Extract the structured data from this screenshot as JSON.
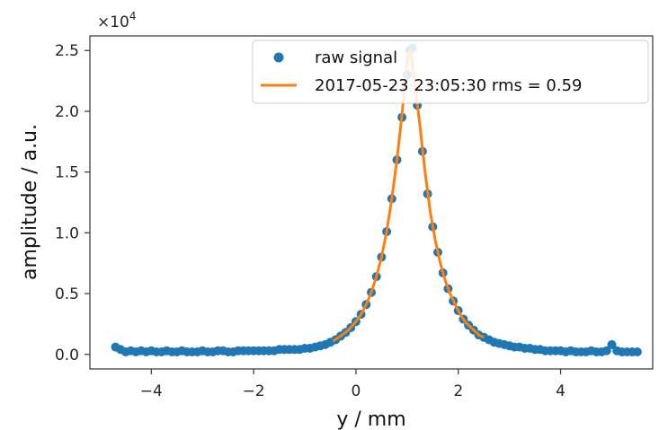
{
  "chart_data": {
    "type": "scatter",
    "xlabel": "y / mm",
    "ylabel": "amplitude / a.u.",
    "y_multiplier_label": "×10",
    "y_multiplier_exp": "4",
    "xlim": [
      -5.2,
      5.8
    ],
    "ylim": [
      -0.12,
      2.62
    ],
    "x_ticks": [
      -4,
      -2,
      0,
      2,
      4
    ],
    "x_tick_labels": [
      "−4",
      "−2",
      "0",
      "2",
      "4"
    ],
    "y_ticks": [
      0.0,
      0.5,
      1.0,
      1.5,
      2.0,
      2.5
    ],
    "y_tick_labels": [
      "0.0",
      "0.5",
      "1.0",
      "1.5",
      "2.0",
      "2.5"
    ],
    "grid": false,
    "legend_position": "top-right",
    "series": [
      {
        "name": "raw signal",
        "kind": "scatter",
        "color": "#1f77b4",
        "points": [
          [
            -4.7,
            0.06
          ],
          [
            -4.6,
            0.04
          ],
          [
            -4.5,
            0.02
          ],
          [
            -4.4,
            0.03
          ],
          [
            -4.3,
            0.02
          ],
          [
            -4.2,
            0.03
          ],
          [
            -4.1,
            0.02
          ],
          [
            -4.0,
            0.03
          ],
          [
            -3.9,
            0.02
          ],
          [
            -3.8,
            0.02
          ],
          [
            -3.7,
            0.03
          ],
          [
            -3.6,
            0.02
          ],
          [
            -3.5,
            0.02
          ],
          [
            -3.4,
            0.03
          ],
          [
            -3.3,
            0.02
          ],
          [
            -3.2,
            0.02
          ],
          [
            -3.1,
            0.02
          ],
          [
            -3.0,
            0.03
          ],
          [
            -2.9,
            0.02
          ],
          [
            -2.8,
            0.02
          ],
          [
            -2.7,
            0.03
          ],
          [
            -2.6,
            0.03
          ],
          [
            -2.5,
            0.02
          ],
          [
            -2.4,
            0.02
          ],
          [
            -2.3,
            0.03
          ],
          [
            -2.2,
            0.03
          ],
          [
            -2.1,
            0.03
          ],
          [
            -2.0,
            0.03
          ],
          [
            -1.9,
            0.03
          ],
          [
            -1.8,
            0.03
          ],
          [
            -1.7,
            0.03
          ],
          [
            -1.6,
            0.03
          ],
          [
            -1.5,
            0.04
          ],
          [
            -1.4,
            0.04
          ],
          [
            -1.3,
            0.04
          ],
          [
            -1.2,
            0.04
          ],
          [
            -1.1,
            0.04
          ],
          [
            -1.0,
            0.05
          ],
          [
            -0.9,
            0.05
          ],
          [
            -0.8,
            0.06
          ],
          [
            -0.7,
            0.07
          ],
          [
            -0.6,
            0.08
          ],
          [
            -0.5,
            0.1
          ],
          [
            -0.4,
            0.12
          ],
          [
            -0.3,
            0.15
          ],
          [
            -0.2,
            0.18
          ],
          [
            -0.1,
            0.22
          ],
          [
            0.0,
            0.27
          ],
          [
            0.1,
            0.33
          ],
          [
            0.2,
            0.41
          ],
          [
            0.3,
            0.51
          ],
          [
            0.4,
            0.64
          ],
          [
            0.5,
            0.8
          ],
          [
            0.6,
            1.01
          ],
          [
            0.7,
            1.28
          ],
          [
            0.8,
            1.6
          ],
          [
            0.9,
            1.95
          ],
          [
            1.0,
            2.3
          ],
          [
            1.05,
            2.5
          ],
          [
            1.1,
            2.52
          ],
          [
            1.2,
            2.05
          ],
          [
            1.3,
            1.67
          ],
          [
            1.4,
            1.32
          ],
          [
            1.5,
            1.05
          ],
          [
            1.6,
            0.84
          ],
          [
            1.7,
            0.67
          ],
          [
            1.8,
            0.54
          ],
          [
            1.9,
            0.44
          ],
          [
            2.0,
            0.36
          ],
          [
            2.1,
            0.29
          ],
          [
            2.2,
            0.24
          ],
          [
            2.3,
            0.2
          ],
          [
            2.4,
            0.16
          ],
          [
            2.5,
            0.14
          ],
          [
            2.6,
            0.12
          ],
          [
            2.7,
            0.1
          ],
          [
            2.8,
            0.09
          ],
          [
            2.9,
            0.08
          ],
          [
            3.0,
            0.07
          ],
          [
            3.1,
            0.06
          ],
          [
            3.2,
            0.06
          ],
          [
            3.3,
            0.05
          ],
          [
            3.4,
            0.05
          ],
          [
            3.5,
            0.04
          ],
          [
            3.6,
            0.04
          ],
          [
            3.7,
            0.03
          ],
          [
            3.8,
            0.03
          ],
          [
            3.9,
            0.03
          ],
          [
            4.0,
            0.03
          ],
          [
            4.1,
            0.02
          ],
          [
            4.2,
            0.03
          ],
          [
            4.3,
            0.02
          ],
          [
            4.4,
            0.02
          ],
          [
            4.5,
            0.02
          ],
          [
            4.6,
            0.03
          ],
          [
            4.7,
            0.02
          ],
          [
            4.8,
            0.02
          ],
          [
            4.9,
            0.03
          ],
          [
            5.0,
            0.08
          ],
          [
            5.1,
            0.03
          ],
          [
            5.2,
            0.02
          ],
          [
            5.3,
            0.02
          ],
          [
            5.4,
            0.02
          ],
          [
            5.5,
            0.02
          ]
        ]
      },
      {
        "name": "2017-05-23 23:05:30 rms = 0.59",
        "kind": "line",
        "color": "#ff7f0e",
        "points": [
          [
            -0.45,
            0.11
          ],
          [
            -0.3,
            0.15
          ],
          [
            -0.15,
            0.2
          ],
          [
            0.0,
            0.27
          ],
          [
            0.1,
            0.33
          ],
          [
            0.2,
            0.41
          ],
          [
            0.3,
            0.51
          ],
          [
            0.4,
            0.64
          ],
          [
            0.5,
            0.8
          ],
          [
            0.6,
            1.01
          ],
          [
            0.7,
            1.28
          ],
          [
            0.8,
            1.6
          ],
          [
            0.9,
            1.97
          ],
          [
            0.97,
            2.3
          ],
          [
            1.02,
            2.48
          ],
          [
            1.06,
            2.5
          ],
          [
            1.1,
            2.4
          ],
          [
            1.16,
            2.2
          ],
          [
            1.25,
            1.88
          ],
          [
            1.35,
            1.5
          ],
          [
            1.45,
            1.18
          ],
          [
            1.55,
            0.94
          ],
          [
            1.65,
            0.75
          ],
          [
            1.75,
            0.6
          ],
          [
            1.85,
            0.49
          ],
          [
            1.95,
            0.4
          ],
          [
            2.05,
            0.32
          ],
          [
            2.15,
            0.26
          ],
          [
            2.25,
            0.22
          ],
          [
            2.4,
            0.16
          ],
          [
            2.5,
            0.14
          ]
        ]
      }
    ]
  }
}
